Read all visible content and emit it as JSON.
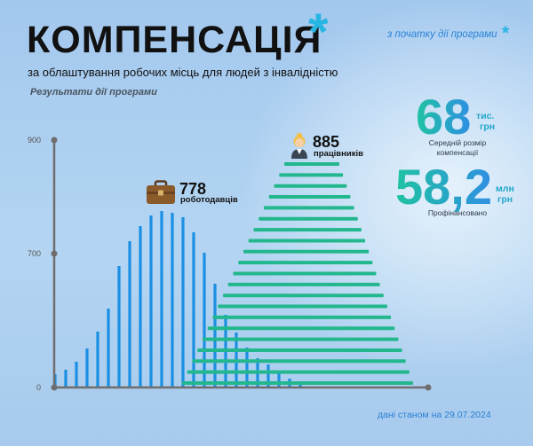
{
  "header": {
    "title": "КОМПЕНСАЦІЯ",
    "title_asterisk": "*",
    "subtitle": "за облаштування робочих місць для людей з інвалідністю",
    "period_note": "з початку дії програми",
    "period_asterisk": "*"
  },
  "stats": {
    "average": {
      "value": "68",
      "unit_top": "тис.",
      "unit_bottom": "грн",
      "caption_line1": "Середній розмір",
      "caption_line2": "компенсації"
    },
    "funded": {
      "value": "58,2",
      "unit_top": "млн",
      "unit_bottom": "грн",
      "caption": "Профінансовано"
    }
  },
  "footnote": "дані станом на 29.07.2024",
  "colors": {
    "accent": "#27b5e3",
    "employers": "#1a8fe3",
    "workers": "#22b78d",
    "axis": "#6e6e6e"
  },
  "icons": {
    "employers": "briefcase-icon",
    "workers": "worker-icon"
  },
  "chart_data": {
    "type": "bar",
    "title": "Результати дії програми",
    "y_ticks": [
      0,
      700,
      900
    ],
    "ylim": [
      0,
      900
    ],
    "grid": false,
    "series": [
      {
        "name": "роботодавців",
        "value": 778
      },
      {
        "name": "працівників",
        "value": 885
      }
    ]
  }
}
